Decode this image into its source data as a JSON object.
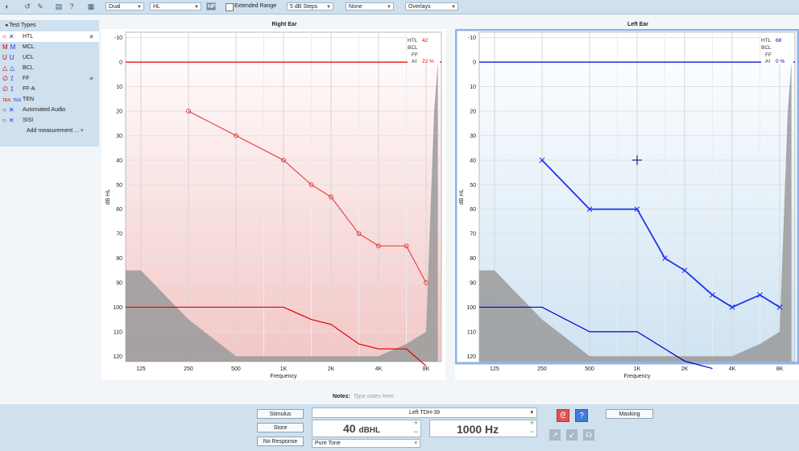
{
  "toolbar": {
    "mode_select": "Dual",
    "scale_select": "HL",
    "hf_label": "HF",
    "extended_range_label": "Extended Range",
    "steps_select": "5 dB Steps",
    "none_select": "None",
    "overlays_select": "Overlays"
  },
  "sidebar": {
    "title": "Test Types",
    "items": [
      {
        "sym_r": "○",
        "sym_l": "✕",
        "label": "HTL",
        "star": "★",
        "selected": true
      },
      {
        "sym_r": "M",
        "sym_l": "M",
        "label": "MCL"
      },
      {
        "sym_r": "U",
        "sym_l": "U",
        "label": "UCL"
      },
      {
        "sym_r": "△",
        "sym_l": "△",
        "label": "BCL"
      },
      {
        "sym_r": "∅",
        "sym_l": "⁒",
        "label": "FF",
        "star": "★"
      },
      {
        "sym_r": "∅",
        "sym_l": "⁒",
        "label": "FF-A"
      },
      {
        "sym_r": "TEN",
        "sym_l": "TEN",
        "label": "TEN"
      },
      {
        "sym_r": "○",
        "sym_l": "✕",
        "label": "Automated Audio"
      },
      {
        "sym_r": "○",
        "sym_l": "✕",
        "label": "SISI"
      }
    ],
    "add_label": "Add measurement ...",
    "add_caret": "▾"
  },
  "right_ear": {
    "title": "Right Ear",
    "legend": {
      "htl_label": "HTL",
      "htl_value": "42",
      "bcl_label": "BCL",
      "ff_label": "FF",
      "ai_label": "AI",
      "ai_value": "22 %"
    }
  },
  "left_ear": {
    "title": "Left Ear",
    "legend": {
      "htl_label": "HTL",
      "htl_value": "68",
      "bcl_label": "BCL",
      "ff_label": "FF",
      "ai_label": "AI",
      "ai_value": "0 %"
    }
  },
  "colors": {
    "right": "#e23b3b",
    "right_dark": "#e00000",
    "left": "#1c33f0",
    "left_dark": "#0000cc",
    "gray": "#9a9a9a"
  },
  "chart_data": [
    {
      "type": "line",
      "title": "Right Ear",
      "xlabel": "Frequency",
      "ylabel": "dB HL",
      "x_tick_labels": [
        "125",
        "250",
        "500",
        "1K",
        "2K",
        "4K",
        "8K"
      ],
      "x_ticks": [
        125,
        250,
        500,
        1000,
        2000,
        4000,
        8000
      ],
      "y_ticks": [
        -10,
        0,
        10,
        20,
        30,
        40,
        50,
        60,
        70,
        80,
        90,
        100,
        110,
        120
      ],
      "ylim": [
        -10,
        120
      ],
      "series": [
        {
          "kind": "htl",
          "x": [
            250,
            500,
            1000,
            1500,
            2000,
            3000,
            4000,
            6000,
            8000
          ],
          "y": [
            20,
            30,
            40,
            50,
            55,
            70,
            75,
            75,
            90
          ]
        },
        {
          "kind": "limit",
          "x": [
            100,
            250,
            500,
            1000,
            1500,
            2000,
            3000,
            4000,
            6000,
            8000
          ],
          "y": [
            100,
            100,
            100,
            100,
            105,
            107,
            115,
            117,
            117,
            124
          ]
        }
      ]
    },
    {
      "type": "line",
      "title": "Left Ear",
      "xlabel": "Frequency",
      "ylabel": "dB HL",
      "x_tick_labels": [
        "125",
        "250",
        "500",
        "1K",
        "2K",
        "4K",
        "8K"
      ],
      "x_ticks": [
        125,
        250,
        500,
        1000,
        2000,
        4000,
        8000
      ],
      "y_ticks": [
        -10,
        0,
        10,
        20,
        30,
        40,
        50,
        60,
        70,
        80,
        90,
        100,
        110,
        120
      ],
      "ylim": [
        -10,
        120
      ],
      "cursor": {
        "x": 1000,
        "y": 40
      },
      "series": [
        {
          "kind": "htl",
          "x": [
            250,
            500,
            1000,
            1500,
            2000,
            3000,
            4000,
            6000,
            8000
          ],
          "y": [
            40,
            60,
            60,
            80,
            85,
            95,
            100,
            95,
            100
          ]
        },
        {
          "kind": "limit",
          "x": [
            100,
            250,
            500,
            1000,
            2000,
            3000
          ],
          "y": [
            100,
            100,
            110,
            110,
            122,
            125
          ]
        }
      ]
    }
  ],
  "notes": {
    "label": "Notes:",
    "placeholder": "Type notes here"
  },
  "bottom": {
    "stimulus_label": "Stimulus",
    "store_label": "Store",
    "no_response_label": "No Response",
    "transducer": "Left TDH-39",
    "level_value": "40",
    "level_unit": "dBHL",
    "frequency_value": "1000 Hz",
    "tone_select": "Pure Tone",
    "masking_label": "Masking",
    "plus": "+",
    "minus": "−",
    "caret": "▾"
  }
}
